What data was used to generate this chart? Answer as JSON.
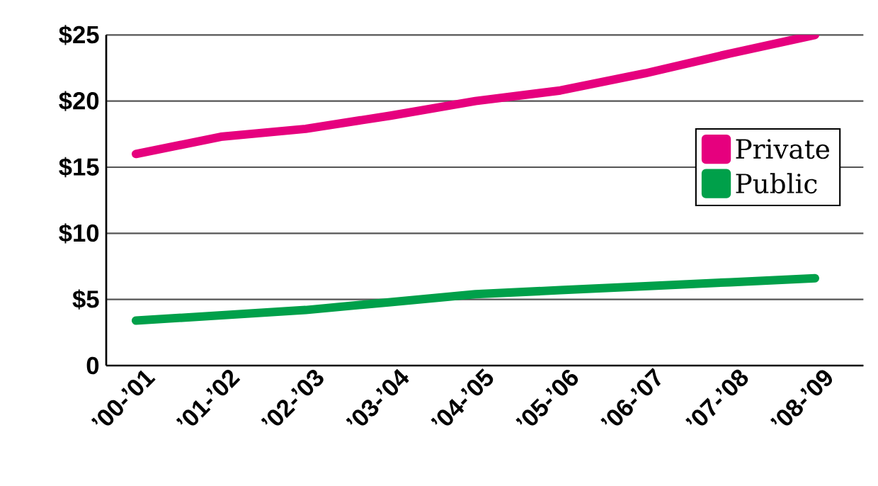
{
  "chart_data": {
    "type": "line",
    "categories": [
      "’00-’01",
      "’01-’02",
      "’02-’03",
      "’03-’04",
      "’04-’05",
      "’05-’06",
      "’06-’07",
      "’07-’08",
      "’08-’09"
    ],
    "series": [
      {
        "name": "Private",
        "color": "#e6007e",
        "values": [
          16.0,
          17.3,
          17.9,
          18.9,
          20.0,
          20.8,
          22.1,
          23.6,
          25.0
        ]
      },
      {
        "name": "Public",
        "color": "#00a04a",
        "values": [
          3.4,
          3.8,
          4.2,
          4.8,
          5.4,
          5.7,
          6.0,
          6.3,
          6.6
        ]
      }
    ],
    "ylim": [
      0,
      25
    ],
    "yticks": [
      {
        "value": 0,
        "label": "0"
      },
      {
        "value": 5,
        "label": "$5"
      },
      {
        "value": 10,
        "label": "$10"
      },
      {
        "value": 15,
        "label": "$15"
      },
      {
        "value": 20,
        "label": "$20"
      },
      {
        "value": 25,
        "label": "$25"
      }
    ],
    "grid": "y",
    "legend": "right",
    "marker": "none",
    "line_style": "solid"
  }
}
